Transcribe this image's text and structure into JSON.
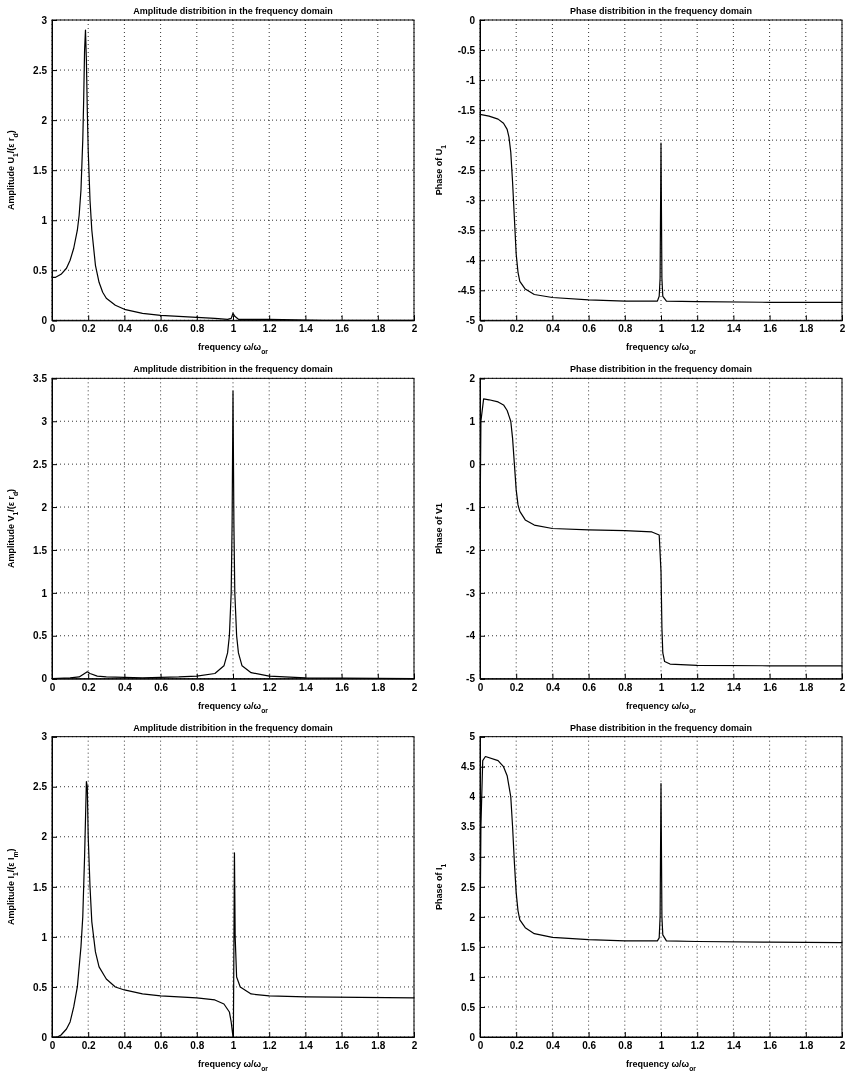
{
  "chart_data": [
    {
      "type": "line",
      "title": "Amplitude distribition in the frequency domain",
      "xlabel": "frequency ω/ω$_{or}$",
      "ylabel": "Amplitude U$_{1}$/(ε r$_{d}$)",
      "xlim": [
        0,
        2
      ],
      "xticks": [
        0,
        0.2,
        0.4,
        0.6,
        0.8,
        1,
        1.2,
        1.4,
        1.6,
        1.8,
        2
      ],
      "ylim": [
        0,
        3
      ],
      "yticks": [
        0,
        0.5,
        1,
        1.5,
        2,
        2.5,
        3
      ],
      "grid": true,
      "line_style": "solid",
      "series": [
        {
          "color": "#000000",
          "x": [
            0,
            0.02,
            0.05,
            0.08,
            0.1,
            0.12,
            0.14,
            0.15,
            0.16,
            0.17,
            0.175,
            0.18,
            0.185,
            0.19,
            0.195,
            0.2,
            0.21,
            0.22,
            0.24,
            0.26,
            0.28,
            0.3,
            0.35,
            0.4,
            0.5,
            0.6,
            0.7,
            0.8,
            0.9,
            0.97,
            0.99,
            1.0,
            1.01,
            1.03,
            1.1,
            1.2,
            1.5,
            2
          ],
          "values": [
            0.43,
            0.43,
            0.46,
            0.52,
            0.6,
            0.72,
            0.9,
            1.05,
            1.3,
            1.8,
            2.2,
            2.7,
            2.9,
            2.6,
            2.1,
            1.7,
            1.2,
            0.9,
            0.55,
            0.38,
            0.28,
            0.22,
            0.15,
            0.11,
            0.07,
            0.05,
            0.04,
            0.03,
            0.02,
            0.01,
            0.02,
            0.07,
            0.04,
            0.01,
            0.01,
            0.01,
            0,
            0
          ]
        }
      ]
    },
    {
      "type": "line",
      "title": "Phase distribition in the frequency domain",
      "xlabel": "frequency ω/ω$_{or}$",
      "ylabel": "Phase of U$_{1}$",
      "xlim": [
        0,
        2
      ],
      "xticks": [
        0,
        0.2,
        0.4,
        0.6,
        0.8,
        1,
        1.2,
        1.4,
        1.6,
        1.8,
        2
      ],
      "ylim": [
        -5,
        0
      ],
      "yticks": [
        -5,
        -4.5,
        -4,
        -3.5,
        -3,
        -2.5,
        -2,
        -1.5,
        -1,
        -0.5,
        0
      ],
      "grid": true,
      "line_style": "solid",
      "series": [
        {
          "color": "#000000",
          "x": [
            0,
            0.05,
            0.1,
            0.13,
            0.15,
            0.16,
            0.17,
            0.18,
            0.19,
            0.2,
            0.21,
            0.22,
            0.25,
            0.3,
            0.4,
            0.6,
            0.8,
            0.98,
            0.99,
            0.995,
            1.0,
            1.005,
            1.01,
            1.03,
            1.2,
            1.6,
            2
          ],
          "values": [
            -1.57,
            -1.6,
            -1.65,
            -1.72,
            -1.82,
            -1.95,
            -2.2,
            -2.7,
            -3.3,
            -3.9,
            -4.2,
            -4.35,
            -4.48,
            -4.57,
            -4.62,
            -4.66,
            -4.68,
            -4.68,
            -4.6,
            -4.3,
            -2.05,
            -4.3,
            -4.6,
            -4.68,
            -4.69,
            -4.7,
            -4.7
          ]
        }
      ]
    },
    {
      "type": "line",
      "title": "Amplitude distribition in the frequency domain",
      "xlabel": "frequency ω/ω$_{or}$",
      "ylabel": "Amplitude V$_{1}$/(ε r$_{d}$)",
      "xlim": [
        0,
        2
      ],
      "xticks": [
        0,
        0.2,
        0.4,
        0.6,
        0.8,
        1,
        1.2,
        1.4,
        1.6,
        1.8,
        2
      ],
      "ylim": [
        0,
        3.5
      ],
      "yticks": [
        0,
        0.5,
        1,
        1.5,
        2,
        2.5,
        3,
        3.5
      ],
      "grid": true,
      "line_style": "solid",
      "series": [
        {
          "color": "#000000",
          "x": [
            0,
            0.1,
            0.15,
            0.18,
            0.195,
            0.21,
            0.25,
            0.3,
            0.5,
            0.7,
            0.8,
            0.9,
            0.95,
            0.97,
            0.98,
            0.99,
            0.995,
            1.0,
            1.005,
            1.01,
            1.02,
            1.03,
            1.05,
            1.1,
            1.2,
            1.4,
            2
          ],
          "values": [
            0,
            0.01,
            0.02,
            0.06,
            0.08,
            0.06,
            0.03,
            0.02,
            0.01,
            0.02,
            0.03,
            0.06,
            0.15,
            0.3,
            0.5,
            1.0,
            1.8,
            3.35,
            1.8,
            1.0,
            0.5,
            0.3,
            0.15,
            0.07,
            0.03,
            0.01,
            0
          ]
        }
      ]
    },
    {
      "type": "line",
      "title": "Phase distribition in the frequency domain",
      "xlabel": "frequency ω/ω$_{or}$",
      "ylabel": "Phase of V1",
      "xlim": [
        0,
        2
      ],
      "xticks": [
        0,
        0.2,
        0.4,
        0.6,
        0.8,
        1,
        1.2,
        1.4,
        1.6,
        1.8,
        2
      ],
      "ylim": [
        -5,
        2
      ],
      "yticks": [
        -5,
        -4,
        -3,
        -2,
        -1,
        0,
        1,
        2
      ],
      "grid": true,
      "line_style": "solid",
      "series": [
        {
          "color": "#000000",
          "x": [
            0,
            0.005,
            0.02,
            0.05,
            0.1,
            0.13,
            0.15,
            0.17,
            0.18,
            0.19,
            0.2,
            0.21,
            0.22,
            0.25,
            0.3,
            0.4,
            0.6,
            0.8,
            0.95,
            0.99,
            1.0,
            1.005,
            1.01,
            1.02,
            1.05,
            1.2,
            1.6,
            2
          ],
          "values": [
            -1.5,
            1.0,
            1.52,
            1.5,
            1.45,
            1.38,
            1.25,
            1.0,
            0.6,
            0.0,
            -0.6,
            -0.95,
            -1.1,
            -1.3,
            -1.42,
            -1.5,
            -1.53,
            -1.55,
            -1.58,
            -1.65,
            -2.5,
            -3.8,
            -4.4,
            -4.6,
            -4.66,
            -4.69,
            -4.7,
            -4.7
          ]
        }
      ]
    },
    {
      "type": "line",
      "title": "Amplitude distribition in the frequency domain",
      "xlabel": "frequency ω/ω$_{or}$",
      "ylabel": "Amplitude I$_{1}$/(ε I$_{m}$)",
      "xlim": [
        0,
        2
      ],
      "xticks": [
        0,
        0.2,
        0.4,
        0.6,
        0.8,
        1,
        1.2,
        1.4,
        1.6,
        1.8,
        2
      ],
      "ylim": [
        0,
        3
      ],
      "yticks": [
        0,
        0.5,
        1,
        1.5,
        2,
        2.5,
        3
      ],
      "grid": true,
      "line_style": "solid",
      "series": [
        {
          "color": "#000000",
          "x": [
            0,
            0.03,
            0.05,
            0.08,
            0.1,
            0.12,
            0.14,
            0.16,
            0.17,
            0.18,
            0.19,
            0.195,
            0.2,
            0.21,
            0.22,
            0.24,
            0.26,
            0.3,
            0.35,
            0.4,
            0.5,
            0.6,
            0.7,
            0.8,
            0.9,
            0.95,
            0.98,
            0.99,
            1.0,
            1.002,
            1.005,
            1.008,
            1.012,
            1.02,
            1.04,
            1.1,
            1.2,
            1.4,
            2
          ],
          "values": [
            0,
            0,
            0.02,
            0.08,
            0.15,
            0.3,
            0.5,
            0.9,
            1.2,
            1.8,
            2.55,
            2.5,
            2.0,
            1.5,
            1.15,
            0.85,
            0.7,
            0.58,
            0.5,
            0.47,
            0.43,
            0.41,
            0.4,
            0.39,
            0.37,
            0.33,
            0.25,
            0.15,
            0,
            0,
            0.9,
            1.84,
            1.0,
            0.6,
            0.5,
            0.43,
            0.41,
            0.4,
            0.39
          ]
        }
      ]
    },
    {
      "type": "line",
      "title": "Phase distribition in the frequency domain",
      "xlabel": "frequency ω/ω$_{or}$",
      "ylabel": "Phase of I$_{1}$",
      "xlim": [
        0,
        2
      ],
      "xticks": [
        0,
        0.2,
        0.4,
        0.6,
        0.8,
        1,
        1.2,
        1.4,
        1.6,
        1.8,
        2
      ],
      "ylim": [
        0,
        5
      ],
      "yticks": [
        0,
        0.5,
        1,
        1.5,
        2,
        2.5,
        3,
        3.5,
        4,
        4.5,
        5
      ],
      "grid": true,
      "line_style": "solid",
      "series": [
        {
          "color": "#000000",
          "x": [
            0,
            0.005,
            0.015,
            0.03,
            0.1,
            0.13,
            0.15,
            0.17,
            0.18,
            0.19,
            0.2,
            0.21,
            0.22,
            0.25,
            0.3,
            0.4,
            0.6,
            0.8,
            0.98,
            0.99,
            0.995,
            1.0,
            1.005,
            1.01,
            1.03,
            1.2,
            1.6,
            2
          ],
          "values": [
            1.6,
            3.5,
            4.6,
            4.67,
            4.6,
            4.5,
            4.35,
            4.0,
            3.5,
            2.9,
            2.4,
            2.1,
            1.95,
            1.82,
            1.72,
            1.66,
            1.62,
            1.6,
            1.6,
            1.65,
            2.0,
            4.22,
            2.0,
            1.7,
            1.6,
            1.59,
            1.58,
            1.57
          ]
        }
      ]
    }
  ]
}
